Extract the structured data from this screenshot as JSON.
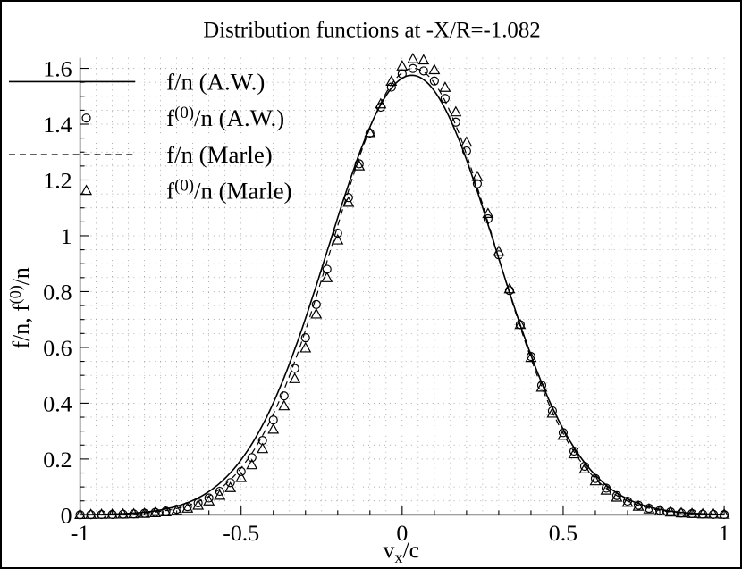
{
  "figure": {
    "background": "#ffffff",
    "border_color": "#000000",
    "foreground": "#000000"
  },
  "chart_data": {
    "type": "line",
    "title": "Distribution functions at -X/R=-1.082",
    "xlabel": "v_x/c",
    "ylabel": "f/n, f^(0)/n",
    "x_range": [
      -1,
      1
    ],
    "y_range": [
      0,
      1.638
    ],
    "x_ticks": {
      "values": [
        -1,
        -0.5,
        0,
        0.5,
        1
      ],
      "labels": [
        "-1",
        "-0.5",
        "0",
        "0.5",
        "1"
      ]
    },
    "y_ticks": {
      "values": [
        0,
        0.2,
        0.4,
        0.6,
        0.8,
        1,
        1.2,
        1.4,
        1.6
      ],
      "labels": [
        "0",
        "0.2",
        "0.4",
        "0.6",
        "0.8",
        "1",
        "1.2",
        "1.4",
        "1.6"
      ]
    },
    "x_minor_step": 0.1,
    "y_minor_step": 0.05,
    "grid": {
      "show": true,
      "style": "dotted",
      "x_step": 0.05,
      "y_step": 0.05
    },
    "legend": {
      "position": "top-left",
      "entries": [
        {
          "label": "f/n (A.W.)",
          "sample": "solid-line"
        },
        {
          "label": "f^(0)/n (A.W.)",
          "sample": "circle-marker"
        },
        {
          "label": "f/n (Marle)",
          "sample": "dashed-line"
        },
        {
          "label": "f^(0)/n (Marle)",
          "sample": "triangle-marker"
        }
      ]
    },
    "points_definition": "y = amplitude * exp(-(x-mean)^2 / (2*sigma^2)), lines sampled at curve_sampling_step, markers sampled at marker_step over x_range",
    "curve_sampling_step": 0.005,
    "series": [
      {
        "id": "fn-aw",
        "name": "f/n (A.W.)",
        "style": "line-solid",
        "gaussian": {
          "amplitude": 1.575,
          "mean": 0.03,
          "sigma": 0.26
        }
      },
      {
        "id": "f0n-aw",
        "name": "f^(0)/n (A.W.)",
        "style": "marker-circle",
        "marker_step": 0.0333333,
        "gaussian": {
          "amplitude": 1.6,
          "mean": 0.04,
          "sigma": 0.25
        }
      },
      {
        "id": "fn-marle",
        "name": "f/n (Marle)",
        "style": "line-dashed",
        "gaussian": {
          "amplitude": 1.6,
          "mean": 0.035,
          "sigma": 0.252
        }
      },
      {
        "id": "f0n-marle",
        "name": "f^(0)/n (Marle)",
        "style": "marker-triangle",
        "marker_step": 0.0333333,
        "gaussian": {
          "amplitude": 1.635,
          "mean": 0.045,
          "sigma": 0.243
        }
      }
    ],
    "colors": {
      "foreground": "#000000"
    }
  }
}
